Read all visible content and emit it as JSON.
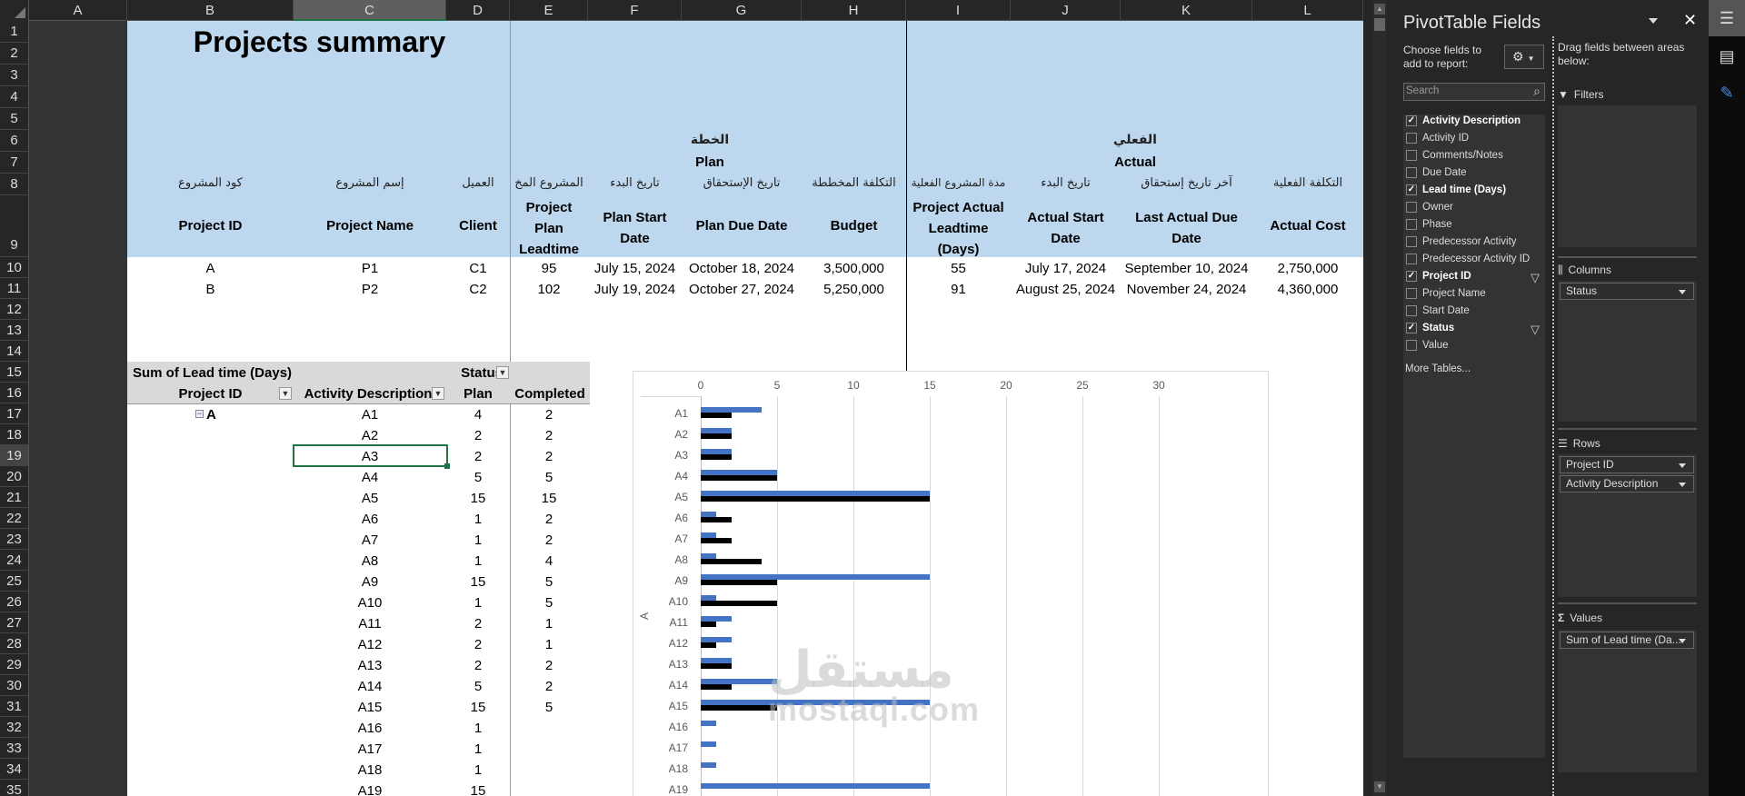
{
  "spreadsheet": {
    "columns": [
      "A",
      "B",
      "C",
      "D",
      "E",
      "F",
      "G",
      "H",
      "I",
      "J",
      "K",
      "L"
    ],
    "selected_column": "C",
    "rows": [
      "1",
      "2",
      "3",
      "4",
      "5",
      "6",
      "7",
      "8",
      "9",
      "10",
      "11",
      "12",
      "13",
      "14",
      "15",
      "16",
      "17",
      "18",
      "19",
      "20",
      "21",
      "22",
      "23",
      "24",
      "25",
      "26",
      "27",
      "28",
      "29",
      "30",
      "31",
      "32",
      "33",
      "34",
      "35"
    ],
    "selected_row": "19",
    "title": "Projects summary",
    "group_plan_ar": "الخطة",
    "group_plan_en": "Plan",
    "group_actual_ar": "الفعلي",
    "group_actual_en": "Actual",
    "headers": [
      {
        "ar": "كود المشروع",
        "en": "Project ID"
      },
      {
        "ar": "إسم المشروع",
        "en": "Project Name"
      },
      {
        "ar": "العميل",
        "en": "Client"
      },
      {
        "ar": "المشروع المخ",
        "en": "Project Plan Leadtime"
      },
      {
        "ar": "تاريخ البدء",
        "en": "Plan Start Date"
      },
      {
        "ar": "تاريخ الإستحقاق",
        "en": "Plan Due Date"
      },
      {
        "ar": "التكلفة المخططة",
        "en": "Budget"
      },
      {
        "ar": "مدة المشروع الفعلية",
        "en": "Project Actual Leadtime (Days)"
      },
      {
        "ar": "تاريخ البدء",
        "en": "Actual Start Date"
      },
      {
        "ar": "آخر تاريخ إستحقاق",
        "en": "Last Actual Due Date"
      },
      {
        "ar": "التكلفة الفعلية",
        "en": "Actual Cost"
      }
    ],
    "data_rows": [
      [
        "A",
        "P1",
        "C1",
        "95",
        "July 15, 2024",
        "October 18, 2024",
        "3,500,000",
        "55",
        "July 17, 2024",
        "September 10, 2024",
        "2,750,000"
      ],
      [
        "B",
        "P2",
        "C2",
        "102",
        "July 19, 2024",
        "October 27, 2024",
        "5,250,000",
        "91",
        "August 25, 2024",
        "November 24, 2024",
        "4,360,000"
      ]
    ]
  },
  "pivot": {
    "value_label": "Sum of Lead time (Days)",
    "column_field": "Status",
    "row_field_1": "Project ID",
    "row_field_2": "Activity Description",
    "col_plan": "Plan",
    "col_completed": "Completed",
    "group": "A",
    "rows": [
      {
        "act": "A1",
        "plan": "4",
        "comp": "2"
      },
      {
        "act": "A2",
        "plan": "2",
        "comp": "2"
      },
      {
        "act": "A3",
        "plan": "2",
        "comp": "2"
      },
      {
        "act": "A4",
        "plan": "5",
        "comp": "5"
      },
      {
        "act": "A5",
        "plan": "15",
        "comp": "15"
      },
      {
        "act": "A6",
        "plan": "1",
        "comp": "2"
      },
      {
        "act": "A7",
        "plan": "1",
        "comp": "2"
      },
      {
        "act": "A8",
        "plan": "1",
        "comp": "4"
      },
      {
        "act": "A9",
        "plan": "15",
        "comp": "5"
      },
      {
        "act": "A10",
        "plan": "1",
        "comp": "5"
      },
      {
        "act": "A11",
        "plan": "2",
        "comp": "1"
      },
      {
        "act": "A12",
        "plan": "2",
        "comp": "1"
      },
      {
        "act": "A13",
        "plan": "2",
        "comp": "2"
      },
      {
        "act": "A14",
        "plan": "5",
        "comp": "2"
      },
      {
        "act": "A15",
        "plan": "15",
        "comp": "5"
      },
      {
        "act": "A16",
        "plan": "1",
        "comp": ""
      },
      {
        "act": "A17",
        "plan": "1",
        "comp": ""
      },
      {
        "act": "A18",
        "plan": "1",
        "comp": ""
      },
      {
        "act": "A19",
        "plan": "15",
        "comp": ""
      }
    ]
  },
  "chart_data": {
    "type": "bar",
    "orientation": "horizontal",
    "title": "",
    "group_label": "A",
    "categories": [
      "A1",
      "A2",
      "A3",
      "A4",
      "A5",
      "A6",
      "A7",
      "A8",
      "A9",
      "A10",
      "A11",
      "A12",
      "A13",
      "A14",
      "A15",
      "A16",
      "A17",
      "A18",
      "A19"
    ],
    "series": [
      {
        "name": "Plan",
        "color": "#4472C4",
        "values": [
          4,
          2,
          2,
          5,
          15,
          1,
          1,
          1,
          15,
          1,
          2,
          2,
          2,
          5,
          15,
          1,
          1,
          1,
          15
        ]
      },
      {
        "name": "Completed",
        "color": "#000000",
        "values": [
          2,
          2,
          2,
          5,
          15,
          2,
          2,
          4,
          5,
          5,
          1,
          1,
          2,
          2,
          5,
          null,
          null,
          null,
          null
        ]
      }
    ],
    "x_ticks": [
      "0",
      "5",
      "10",
      "15",
      "20",
      "25",
      "30"
    ],
    "xlim": [
      0,
      35
    ],
    "grid": true,
    "legend": "none"
  },
  "watermark": {
    "ar": "مستقل",
    "en": "mostaql.com"
  },
  "pivot_panel": {
    "title": "PivotTable Fields",
    "choose_label": "Choose fields to add to report:",
    "drag_label": "Drag fields between areas below:",
    "search_placeholder": "Search",
    "fields": [
      {
        "label": "Activity Description",
        "checked": true,
        "filter": false
      },
      {
        "label": "Activity ID",
        "checked": false,
        "filter": false
      },
      {
        "label": "Comments/Notes",
        "checked": false,
        "filter": false
      },
      {
        "label": "Due Date",
        "checked": false,
        "filter": false
      },
      {
        "label": "Lead time (Days)",
        "checked": true,
        "filter": false
      },
      {
        "label": "Owner",
        "checked": false,
        "filter": false
      },
      {
        "label": "Phase",
        "checked": false,
        "filter": false
      },
      {
        "label": "Predecessor Activity",
        "checked": false,
        "filter": false
      },
      {
        "label": "Predecessor Activity ID",
        "checked": false,
        "filter": false
      },
      {
        "label": "Project ID",
        "checked": true,
        "filter": true
      },
      {
        "label": "Project Name",
        "checked": false,
        "filter": false
      },
      {
        "label": "Start Date",
        "checked": false,
        "filter": false
      },
      {
        "label": "Status",
        "checked": true,
        "filter": true
      },
      {
        "label": "Value",
        "checked": false,
        "filter": false
      }
    ],
    "more_tables": "More Tables...",
    "filters_label": "Filters",
    "columns_label": "Columns",
    "columns_items": [
      "Status"
    ],
    "rows_label": "Rows",
    "rows_items": [
      "Project ID",
      "Activity Description"
    ],
    "values_label": "Values",
    "values_items": [
      "Sum of Lead time (Da..."
    ]
  }
}
